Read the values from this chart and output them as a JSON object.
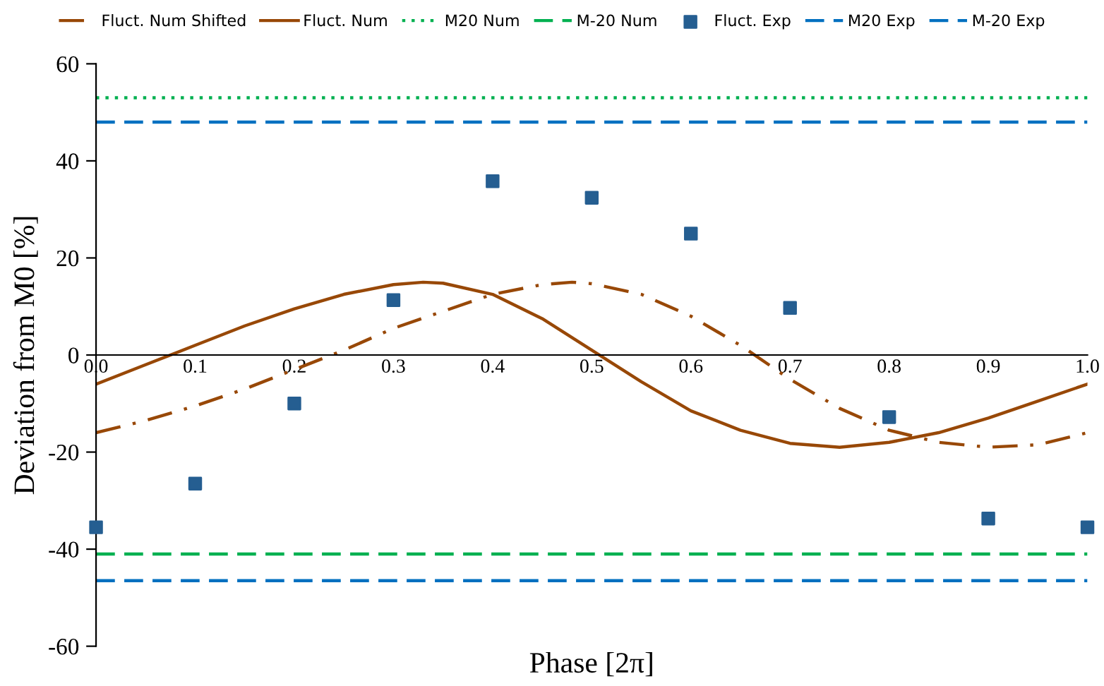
{
  "chart_data": {
    "type": "line",
    "xlabel": "Phase [2π]",
    "ylabel": "Deviation from M0 [%]",
    "xlim": [
      0,
      1
    ],
    "ylim": [
      -60,
      60
    ],
    "xticks": [
      {
        "value": 0,
        "label": "0.0"
      },
      0.1,
      0.2,
      0.3,
      0.4,
      0.5,
      0.6,
      0.7,
      0.8,
      0.9,
      {
        "value": 1,
        "label": "1.0"
      }
    ],
    "yticks": [
      -60,
      -40,
      -20,
      0,
      20,
      40,
      60
    ],
    "grid": false,
    "legend": "top",
    "series": [
      {
        "name": "Fluct. Num Shifted",
        "color": "#984807",
        "line_style": "dashdot",
        "x": [
          0,
          0.05,
          0.1,
          0.15,
          0.2,
          0.25,
          0.3,
          0.35,
          0.4,
          0.45,
          0.48,
          0.5,
          0.55,
          0.6,
          0.65,
          0.7,
          0.75,
          0.8,
          0.85,
          0.9,
          0.95,
          1.0
        ],
        "values": [
          -16,
          -13.5,
          -10.5,
          -7,
          -3,
          1,
          5.5,
          9,
          12.5,
          14.5,
          15,
          14.7,
          12.5,
          8,
          2,
          -5,
          -11,
          -15.5,
          -18,
          -19,
          -18.5,
          -16
        ]
      },
      {
        "name": "Fluct. Num",
        "color": "#984807",
        "line_style": "solid",
        "x": [
          0,
          0.05,
          0.1,
          0.15,
          0.2,
          0.25,
          0.3,
          0.33,
          0.35,
          0.4,
          0.45,
          0.5,
          0.55,
          0.6,
          0.65,
          0.7,
          0.75,
          0.8,
          0.85,
          0.9,
          0.95,
          1.0
        ],
        "values": [
          -6,
          -2,
          2,
          6,
          9.5,
          12.5,
          14.5,
          15,
          14.8,
          12.5,
          7.5,
          1,
          -5.5,
          -11.5,
          -15.5,
          -18.2,
          -19,
          -18,
          -16,
          -13,
          -9.5,
          -6
        ]
      },
      {
        "name": "M20 Num",
        "color": "#00b050",
        "line_style": "dotted",
        "x": [
          0,
          1
        ],
        "values": [
          53,
          53
        ]
      },
      {
        "name": "M-20 Num",
        "color": "#00b050",
        "line_style": "dashed",
        "x": [
          0,
          1
        ],
        "values": [
          -41,
          -41
        ]
      },
      {
        "name": "Fluct. Exp",
        "type": "scatter",
        "color": "#255e91",
        "marker": "square",
        "x": [
          0,
          0.1,
          0.2,
          0.3,
          0.4,
          0.5,
          0.6,
          0.7,
          0.8,
          0.9,
          1.0
        ],
        "values": [
          -35.5,
          -26.5,
          -10,
          11.3,
          35.8,
          32.4,
          25,
          9.7,
          -12.8,
          -33.7,
          -35.5
        ]
      },
      {
        "name": "M20 Exp",
        "color": "#0070c0",
        "line_style": "dashed",
        "x": [
          0,
          1
        ],
        "values": [
          48,
          48
        ]
      },
      {
        "name": "M-20 Exp",
        "color": "#0070c0",
        "line_style": "dashed",
        "x": [
          0,
          1
        ],
        "values": [
          -46.5,
          -46.5
        ]
      }
    ]
  }
}
